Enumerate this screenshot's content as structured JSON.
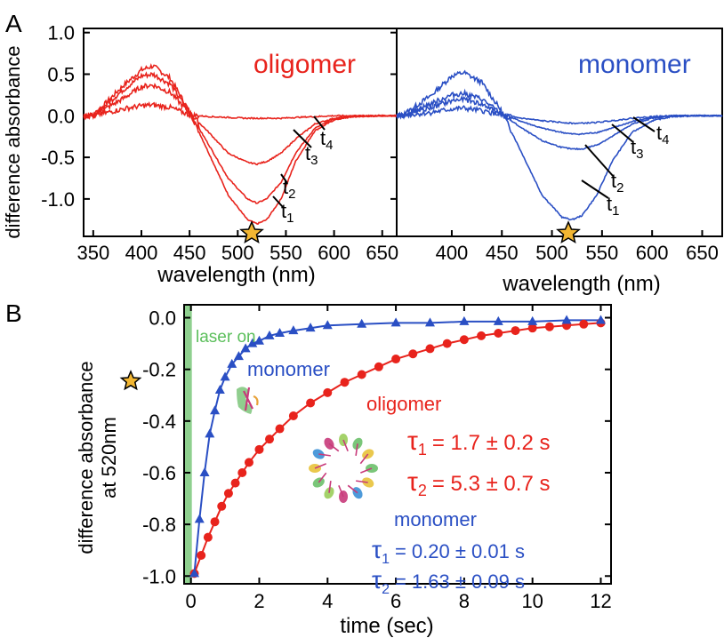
{
  "colors": {
    "oligomer": "#e8231c",
    "monomer": "#2a4fc4",
    "laser": "#8fd08f",
    "star": "#f2b632",
    "axis": "#000000"
  },
  "panelA": {
    "label": "A",
    "ylabel": "difference absorbance",
    "xlabel": "wavelength (nm)",
    "yticks": [
      "1.0",
      "0.5",
      "0.0",
      "-0.5",
      "-1.0"
    ],
    "left": {
      "title": "oligomer",
      "xticks": [
        "350",
        "400",
        "450",
        "500",
        "550",
        "600",
        "650"
      ],
      "tlabels": [
        {
          "t": "t",
          "s": "4"
        },
        {
          "t": "t",
          "s": "3"
        },
        {
          "t": "t",
          "s": "2"
        },
        {
          "t": "t",
          "s": "1"
        }
      ]
    },
    "right": {
      "title": "monomer",
      "xticks": [
        "400",
        "450",
        "500",
        "550",
        "600",
        "650"
      ],
      "tlabels": [
        {
          "t": "t",
          "s": "4"
        },
        {
          "t": "t",
          "s": "3"
        },
        {
          "t": "t",
          "s": "2"
        },
        {
          "t": "t",
          "s": "1"
        }
      ]
    }
  },
  "panelB": {
    "label": "B",
    "ylabel1": "difference absorbance",
    "ylabel2": "at 520nm",
    "xlabel": "time (sec)",
    "xticks": [
      "0",
      "2",
      "4",
      "6",
      "8",
      "10",
      "12"
    ],
    "yticks": [
      "0.0",
      "-0.2",
      "-0.4",
      "-0.6",
      "-0.8",
      "-1.0"
    ],
    "laser_label": "laser on",
    "monomer_label": "monomer",
    "oligomer_label": "oligomer",
    "oligomer_tau1": "= 1.7 ± 0.2 s",
    "oligomer_tau2": "= 5.3 ± 0.7 s",
    "monomer_header": "monomer",
    "monomer_tau1": "= 0.20 ± 0.01 s",
    "monomer_tau2": "= 1.63 ± 0.09 s",
    "tau_symbol": "τ",
    "sub1": "1",
    "sub2": "2"
  },
  "chart_data": [
    {
      "type": "line",
      "panel": "A-left",
      "title": "oligomer",
      "xlabel": "wavelength (nm)",
      "ylabel": "difference absorbance",
      "xlim": [
        340,
        665
      ],
      "ylim": [
        -1.45,
        1.05
      ],
      "series": [
        {
          "name": "t1",
          "x": [
            350,
            380,
            400,
            412,
            430,
            450,
            470,
            490,
            510,
            520,
            530,
            545,
            560,
            580,
            600,
            620,
            650,
            665
          ],
          "y": [
            0.0,
            0.35,
            0.55,
            0.6,
            0.45,
            0.05,
            -0.45,
            -0.95,
            -1.25,
            -1.3,
            -1.25,
            -1.0,
            -0.55,
            -0.18,
            -0.05,
            -0.01,
            0.0,
            0.0
          ]
        },
        {
          "name": "t2",
          "x": [
            350,
            380,
            400,
            412,
            430,
            450,
            470,
            490,
            510,
            520,
            530,
            545,
            560,
            580,
            600,
            620,
            650,
            665
          ],
          "y": [
            0.0,
            0.3,
            0.48,
            0.5,
            0.38,
            0.04,
            -0.35,
            -0.75,
            -1.0,
            -1.05,
            -1.0,
            -0.8,
            -0.45,
            -0.15,
            -0.04,
            -0.01,
            0.0,
            0.0
          ]
        },
        {
          "name": "t3",
          "x": [
            350,
            380,
            400,
            412,
            430,
            450,
            470,
            490,
            510,
            520,
            530,
            545,
            560,
            580,
            600,
            620,
            650,
            665
          ],
          "y": [
            0.0,
            0.2,
            0.35,
            0.37,
            0.28,
            0.03,
            -0.2,
            -0.45,
            -0.56,
            -0.58,
            -0.55,
            -0.45,
            -0.28,
            -0.1,
            -0.03,
            0.0,
            0.0,
            0.0
          ]
        },
        {
          "name": "t4",
          "x": [
            350,
            380,
            400,
            412,
            430,
            450,
            470,
            490,
            510,
            520,
            530,
            545,
            560,
            580,
            600,
            620,
            650,
            665
          ],
          "y": [
            0.0,
            0.08,
            0.12,
            0.13,
            0.1,
            0.01,
            -0.01,
            -0.02,
            -0.03,
            -0.03,
            -0.03,
            -0.03,
            -0.02,
            -0.01,
            0.0,
            0.0,
            0.0,
            0.0
          ]
        }
      ]
    },
    {
      "type": "line",
      "panel": "A-right",
      "title": "monomer",
      "xlabel": "wavelength (nm)",
      "xlim": [
        345,
        670
      ],
      "ylim": [
        -1.45,
        1.05
      ],
      "series": [
        {
          "name": "t1",
          "x": [
            350,
            380,
            400,
            412,
            430,
            450,
            470,
            490,
            510,
            520,
            530,
            545,
            560,
            580,
            600,
            620,
            650,
            670
          ],
          "y": [
            0.0,
            0.25,
            0.48,
            0.52,
            0.4,
            0.05,
            -0.45,
            -0.95,
            -1.22,
            -1.25,
            -1.2,
            -0.95,
            -0.55,
            -0.2,
            -0.06,
            -0.01,
            0.0,
            0.0
          ]
        },
        {
          "name": "t2",
          "x": [
            350,
            380,
            400,
            412,
            430,
            450,
            470,
            490,
            510,
            520,
            530,
            545,
            560,
            580,
            600,
            620,
            650,
            670
          ],
          "y": [
            0.0,
            0.15,
            0.25,
            0.27,
            0.2,
            0.02,
            -0.15,
            -0.3,
            -0.38,
            -0.4,
            -0.4,
            -0.35,
            -0.25,
            -0.1,
            -0.03,
            0.0,
            0.0,
            0.0
          ]
        },
        {
          "name": "t3",
          "x": [
            350,
            380,
            400,
            412,
            430,
            450,
            470,
            490,
            510,
            520,
            530,
            545,
            560,
            580,
            600,
            620,
            650,
            670
          ],
          "y": [
            0.0,
            0.1,
            0.18,
            0.2,
            0.14,
            0.02,
            -0.07,
            -0.15,
            -0.2,
            -0.22,
            -0.22,
            -0.2,
            -0.15,
            -0.07,
            -0.02,
            0.0,
            0.0,
            0.0
          ]
        },
        {
          "name": "t4",
          "x": [
            350,
            380,
            400,
            412,
            430,
            450,
            470,
            490,
            510,
            520,
            530,
            545,
            560,
            580,
            600,
            620,
            650,
            670
          ],
          "y": [
            0.0,
            0.04,
            0.08,
            0.09,
            0.06,
            0.01,
            -0.03,
            -0.06,
            -0.08,
            -0.09,
            -0.09,
            -0.08,
            -0.06,
            -0.03,
            -0.01,
            0.0,
            0.0,
            0.0
          ]
        }
      ]
    },
    {
      "type": "scatter",
      "panel": "B",
      "xlabel": "time (sec)",
      "ylabel": "difference absorbance at 520nm",
      "xlim": [
        -0.2,
        12.3
      ],
      "ylim": [
        -1.03,
        0.05
      ],
      "series": [
        {
          "name": "monomer",
          "marker": "triangle",
          "x": [
            0.1,
            0.25,
            0.4,
            0.55,
            0.7,
            0.85,
            1.0,
            1.2,
            1.4,
            1.6,
            1.8,
            2.0,
            2.3,
            2.6,
            3.0,
            3.5,
            4.0,
            5.0,
            6.0,
            7.0,
            8.0,
            9.0,
            10.0,
            11.0,
            12.0
          ],
          "y": [
            -0.99,
            -0.78,
            -0.6,
            -0.45,
            -0.36,
            -0.28,
            -0.23,
            -0.18,
            -0.15,
            -0.12,
            -0.1,
            -0.09,
            -0.07,
            -0.06,
            -0.05,
            -0.04,
            -0.03,
            -0.025,
            -0.02,
            -0.02,
            -0.015,
            -0.015,
            -0.015,
            -0.01,
            -0.01
          ]
        },
        {
          "name": "oligomer",
          "marker": "circle",
          "x": [
            0.1,
            0.3,
            0.5,
            0.7,
            0.9,
            1.1,
            1.3,
            1.5,
            1.7,
            2.0,
            2.3,
            2.6,
            3.0,
            3.5,
            4.0,
            4.5,
            5.0,
            5.5,
            6.0,
            6.5,
            7.0,
            7.5,
            8.0,
            8.5,
            9.0,
            9.5,
            10.0,
            10.5,
            11.0,
            11.5,
            12.0
          ],
          "y": [
            -0.99,
            -0.92,
            -0.85,
            -0.79,
            -0.73,
            -0.68,
            -0.64,
            -0.6,
            -0.56,
            -0.51,
            -0.47,
            -0.43,
            -0.38,
            -0.33,
            -0.29,
            -0.25,
            -0.22,
            -0.19,
            -0.16,
            -0.14,
            -0.12,
            -0.1,
            -0.085,
            -0.07,
            -0.06,
            -0.05,
            -0.04,
            -0.035,
            -0.03,
            -0.025,
            -0.02
          ]
        }
      ]
    }
  ]
}
